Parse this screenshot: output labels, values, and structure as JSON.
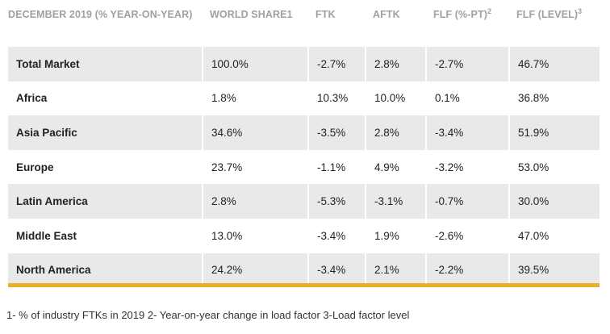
{
  "table": {
    "headers": [
      {
        "label": "DECEMBER 2019 (% YEAR-ON-YEAR)",
        "sup": ""
      },
      {
        "label": "WORLD SHARE1",
        "sup": ""
      },
      {
        "label": "FTK",
        "sup": ""
      },
      {
        "label": "AFTK",
        "sup": ""
      },
      {
        "label": "FLF (%-PT)",
        "sup": "2"
      },
      {
        "label": "FLF (LEVEL)",
        "sup": "3"
      }
    ],
    "rows": [
      {
        "region": "Total Market",
        "world_share": "100.0%",
        "ftk": "-2.7%",
        "aftk": "2.8%",
        "flf_pt": "-2.7%",
        "flf_level": "46.7%"
      },
      {
        "region": "Africa",
        "world_share": "1.8%",
        "ftk": "10.3%",
        "aftk": "10.0%",
        "flf_pt": "0.1%",
        "flf_level": "36.8%"
      },
      {
        "region": "Asia Pacific",
        "world_share": "34.6%",
        "ftk": "-3.5%",
        "aftk": "2.8%",
        "flf_pt": "-3.4%",
        "flf_level": "51.9%"
      },
      {
        "region": "Europe",
        "world_share": "23.7%",
        "ftk": "-1.1%",
        "aftk": "4.9%",
        "flf_pt": "-3.2%",
        "flf_level": "53.0%"
      },
      {
        "region": "Latin America",
        "world_share": "2.8%",
        "ftk": "-5.3%",
        "aftk": "-3.1%",
        "flf_pt": "-0.7%",
        "flf_level": "30.0%"
      },
      {
        "region": "Middle East",
        "world_share": "13.0%",
        "ftk": "-3.4%",
        "aftk": "1.9%",
        "flf_pt": "-2.6%",
        "flf_level": "47.0%"
      },
      {
        "region": "North America",
        "world_share": "24.2%",
        "ftk": "-3.4%",
        "aftk": "2.1%",
        "flf_pt": "-2.2%",
        "flf_level": "39.5%"
      }
    ]
  },
  "footnote": "1- % of industry FTKs in 2019 2- Year-on-year change in load factor 3-Load factor level",
  "colors": {
    "header_text": "#a0a0a0",
    "row_shade": "#e9e9e9",
    "accent_bar": "#e6b126"
  }
}
